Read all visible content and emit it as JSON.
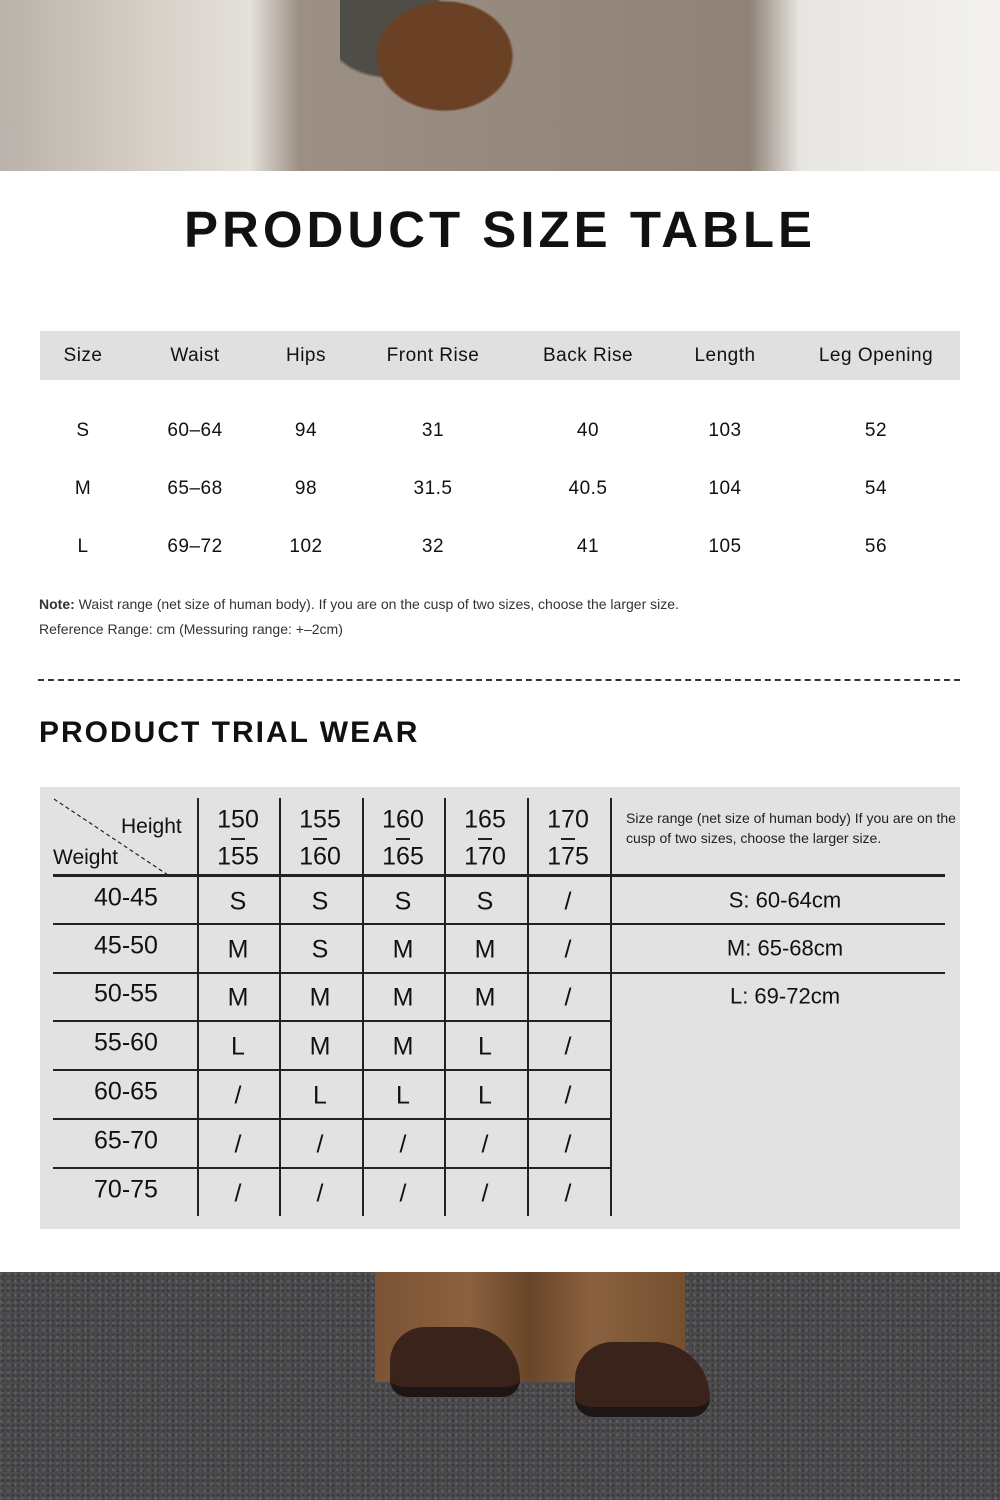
{
  "title": "PRODUCT SIZE TABLE",
  "size_table": {
    "headers": [
      "Size",
      "Waist",
      "Hips",
      "Front Rise",
      "Back Rise",
      "Length",
      "Leg Opening"
    ],
    "rows": [
      [
        "S",
        "60–64",
        "94",
        "31",
        "40",
        "103",
        "52"
      ],
      [
        "M",
        "65–68",
        "98",
        "31.5",
        "40.5",
        "104",
        "54"
      ],
      [
        "L",
        "69–72",
        "102",
        "32",
        "41",
        "105",
        "56"
      ]
    ]
  },
  "note": {
    "label": "Note:",
    "text": " Waist range (net size of human body). If you are on the cusp of two sizes, choose the larger size.",
    "reference": "Reference Range: cm (Messuring range: +–2cm)"
  },
  "trial_title": "PRODUCT TRIAL WEAR",
  "trial": {
    "height_label": "Height",
    "weight_label": "Weight",
    "heights": [
      [
        "150",
        "155"
      ],
      [
        "155",
        "160"
      ],
      [
        "160",
        "165"
      ],
      [
        "165",
        "170"
      ],
      [
        "170",
        "175"
      ]
    ],
    "size_note": "Size range (net size of human body) If you are on the cusp of two sizes, choose the larger size.",
    "ranges": [
      "S: 60-64cm",
      "M: 65-68cm",
      "L: 69-72cm"
    ],
    "rows": [
      {
        "weight": "40-45",
        "sizes": [
          "S",
          "S",
          "S",
          "S",
          "/"
        ]
      },
      {
        "weight": "45-50",
        "sizes": [
          "M",
          "S",
          "M",
          "M",
          "/"
        ]
      },
      {
        "weight": "50-55",
        "sizes": [
          "M",
          "M",
          "M",
          "M",
          "/"
        ]
      },
      {
        "weight": "55-60",
        "sizes": [
          "L",
          "M",
          "M",
          "L",
          "/"
        ]
      },
      {
        "weight": "60-65",
        "sizes": [
          "/",
          "L",
          "L",
          "L",
          "/"
        ]
      },
      {
        "weight": "65-70",
        "sizes": [
          "/",
          "/",
          "/",
          "/",
          "/"
        ]
      },
      {
        "weight": "70-75",
        "sizes": [
          "/",
          "/",
          "/",
          "/",
          "/"
        ]
      }
    ]
  }
}
